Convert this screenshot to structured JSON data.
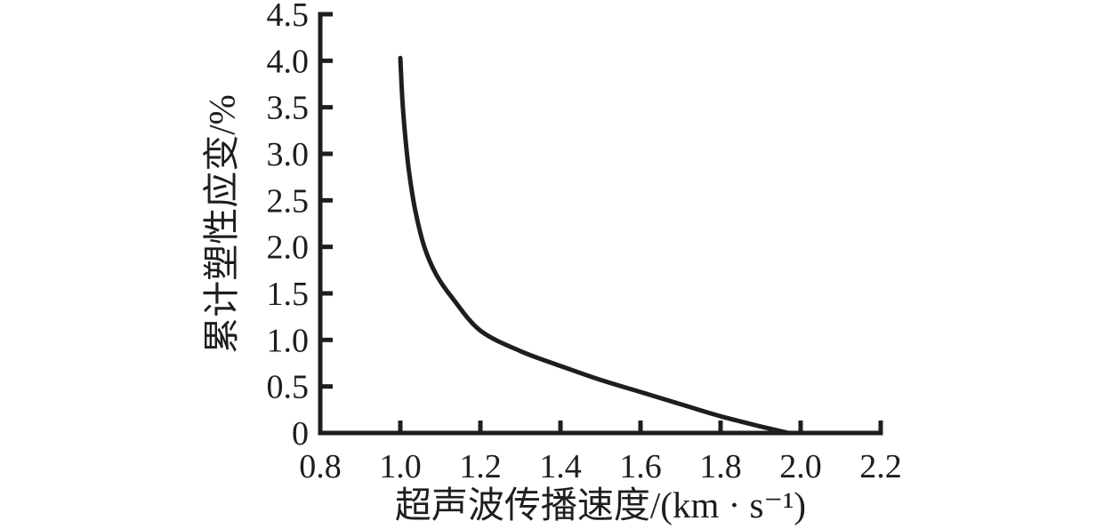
{
  "figure": {
    "background": "#ffffff",
    "ink_color": "#1e1e1e"
  },
  "chart_data": {
    "type": "line",
    "title": "",
    "xlabel": "超声波传播速度/(km · s⁻¹)",
    "ylabel": "累计塑性应变/%",
    "xlim": [
      0.8,
      2.2
    ],
    "ylim": [
      0.0,
      4.5
    ],
    "xticks": [
      "0.8",
      "1.0",
      "1.2",
      "1.4",
      "1.6",
      "1.8",
      "2.0",
      "2.2"
    ],
    "yticks": [
      "0",
      "0.5",
      "1.0",
      "1.5",
      "2.0",
      "2.5",
      "3.0",
      "3.5",
      "4.0",
      "4.5"
    ],
    "grid": false,
    "legend": "none",
    "series": [
      {
        "name": "curve",
        "color": "#1e1e1e",
        "points": [
          [
            1.0,
            4.03
          ],
          [
            1.005,
            3.6
          ],
          [
            1.012,
            3.2
          ],
          [
            1.022,
            2.8
          ],
          [
            1.037,
            2.4
          ],
          [
            1.06,
            2.0
          ],
          [
            1.09,
            1.7
          ],
          [
            1.13,
            1.45
          ],
          [
            1.2,
            1.1
          ],
          [
            1.3,
            0.88
          ],
          [
            1.4,
            0.72
          ],
          [
            1.5,
            0.57
          ],
          [
            1.6,
            0.44
          ],
          [
            1.7,
            0.31
          ],
          [
            1.8,
            0.18
          ],
          [
            1.9,
            0.07
          ],
          [
            1.97,
            0.0
          ]
        ]
      }
    ]
  }
}
